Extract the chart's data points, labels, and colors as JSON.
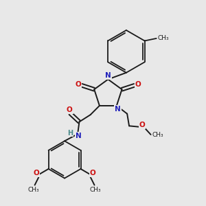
{
  "background_color": "#e8e8e8",
  "bond_color": "#1a1a1a",
  "N_color": "#2222bb",
  "O_color": "#cc1111",
  "H_color": "#4a8a8a",
  "figsize": [
    3.0,
    3.0
  ],
  "dpi": 100,
  "xlim": [
    0,
    10
  ],
  "ylim": [
    0,
    10
  ]
}
